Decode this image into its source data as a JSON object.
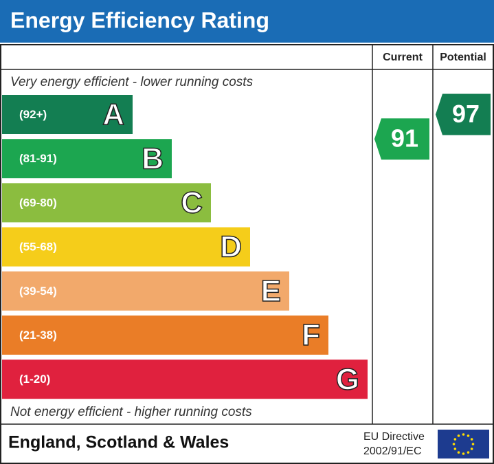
{
  "title": "Energy Efficiency Rating",
  "columns": [
    "Current",
    "Potential"
  ],
  "top_note": "Very energy efficient - lower running costs",
  "bottom_note": "Not energy efficient - higher running costs",
  "bands": [
    {
      "range": "(92+)",
      "letter": "A",
      "color": "#137e52"
    },
    {
      "range": "(81-91)",
      "letter": "B",
      "color": "#1ca650"
    },
    {
      "range": "(69-80)",
      "letter": "C",
      "color": "#8bbd3f"
    },
    {
      "range": "(55-68)",
      "letter": "D",
      "color": "#f5cd1a"
    },
    {
      "range": "(39-54)",
      "letter": "E",
      "color": "#f2a96b"
    },
    {
      "range": "(21-38)",
      "letter": "F",
      "color": "#ea7d27"
    },
    {
      "range": "(1-20)",
      "letter": "G",
      "color": "#e0213e"
    }
  ],
  "ratings": [
    {
      "value": 91,
      "color": "#1ca650"
    },
    {
      "value": 97,
      "color": "#137e52"
    }
  ],
  "footer": {
    "region": "England, Scotland & Wales",
    "directive": [
      "EU Directive",
      "2002/91/EC"
    ]
  }
}
